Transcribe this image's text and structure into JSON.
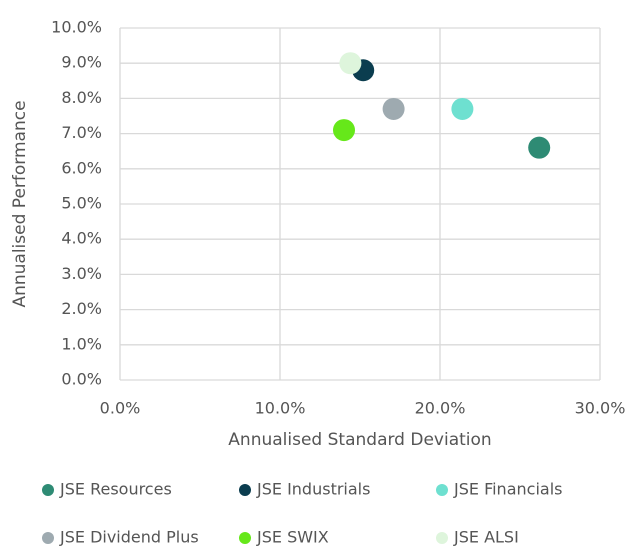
{
  "chart_data": {
    "type": "scatter",
    "xlabel": "Annualised Standard Deviation",
    "ylabel": "Annualised Performance",
    "xlim": [
      0,
      30
    ],
    "ylim": [
      0,
      10
    ],
    "xticks": [
      {
        "value": 0,
        "label": "0.0%"
      },
      {
        "value": 10,
        "label": "10.0%"
      },
      {
        "value": 20,
        "label": "20.0%"
      },
      {
        "value": 30,
        "label": "30.0%"
      }
    ],
    "yticks": [
      {
        "value": 0,
        "label": "0.0%"
      },
      {
        "value": 1,
        "label": "1.0%"
      },
      {
        "value": 2,
        "label": "2.0%"
      },
      {
        "value": 3,
        "label": "3.0%"
      },
      {
        "value": 4,
        "label": "4.0%"
      },
      {
        "value": 5,
        "label": "5.0%"
      },
      {
        "value": 6,
        "label": "6.0%"
      },
      {
        "value": 7,
        "label": "7.0%"
      },
      {
        "value": 8,
        "label": "8.0%"
      },
      {
        "value": 9,
        "label": "9.0%"
      },
      {
        "value": 10,
        "label": "10.0%"
      }
    ],
    "grid": true,
    "legend": "bottom",
    "series": [
      {
        "name": "JSE Resources",
        "color": "#2e8b74",
        "x": [
          26.2
        ],
        "values": [
          6.6
        ]
      },
      {
        "name": "JSE Industrials",
        "color": "#0b3d4f",
        "x": [
          15.2
        ],
        "values": [
          8.8
        ]
      },
      {
        "name": "JSE Financials",
        "color": "#6ee0d0",
        "x": [
          21.4
        ],
        "values": [
          7.7
        ]
      },
      {
        "name": "JSE Dividend Plus",
        "color": "#9eaab0",
        "x": [
          17.1
        ],
        "values": [
          7.7
        ]
      },
      {
        "name": "JSE SWIX",
        "color": "#66e81a",
        "x": [
          14.0
        ],
        "values": [
          7.1
        ]
      },
      {
        "name": "JSE ALSI",
        "color": "#def5dc",
        "x": [
          14.4
        ],
        "values": [
          9.0
        ]
      }
    ]
  }
}
